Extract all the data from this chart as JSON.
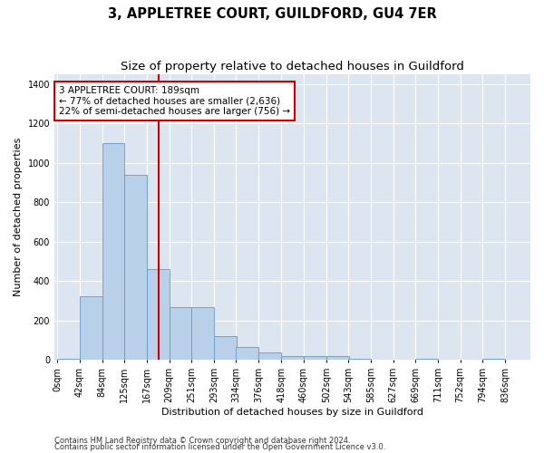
{
  "title": "3, APPLETREE COURT, GUILDFORD, GU4 7ER",
  "subtitle": "Size of property relative to detached houses in Guildford",
  "xlabel": "Distribution of detached houses by size in Guildford",
  "ylabel": "Number of detached properties",
  "footnote1": "Contains HM Land Registry data © Crown copyright and database right 2024.",
  "footnote2": "Contains public sector information licensed under the Open Government Licence v3.0.",
  "annotation_line1": "3 APPLETREE COURT: 189sqm",
  "annotation_line2": "← 77% of detached houses are smaller (2,636)",
  "annotation_line3": "22% of semi-detached houses are larger (756) →",
  "bin_starts": [
    0,
    42,
    84,
    125,
    167,
    209,
    251,
    293,
    334,
    376,
    418,
    460,
    502,
    543,
    585,
    627,
    669,
    711,
    752,
    794
  ],
  "bin_labels": [
    "0sqm",
    "42sqm",
    "84sqm",
    "125sqm",
    "167sqm",
    "209sqm",
    "251sqm",
    "293sqm",
    "334sqm",
    "376sqm",
    "418sqm",
    "460sqm",
    "502sqm",
    "543sqm",
    "585sqm",
    "627sqm",
    "669sqm",
    "711sqm",
    "752sqm",
    "794sqm",
    "836sqm"
  ],
  "bar_heights": [
    8,
    325,
    1100,
    940,
    460,
    270,
    270,
    120,
    65,
    40,
    20,
    20,
    20,
    5,
    0,
    0,
    5,
    0,
    0,
    5
  ],
  "bar_color": "#b8d0e8",
  "bar_edge_color": "#6699cc",
  "vline_x": 189,
  "vline_color": "#cc0000",
  "annotation_box_color": "#cc0000",
  "plot_bg_color": "#dde6f0",
  "ylim": [
    0,
    1450
  ],
  "yticks": [
    0,
    200,
    400,
    600,
    800,
    1000,
    1200,
    1400
  ],
  "grid_color": "#ffffff",
  "title_fontsize": 10.5,
  "subtitle_fontsize": 9.5,
  "axis_label_fontsize": 8,
  "tick_fontsize": 7,
  "footnote_fontsize": 6,
  "annotation_fontsize": 7.5
}
